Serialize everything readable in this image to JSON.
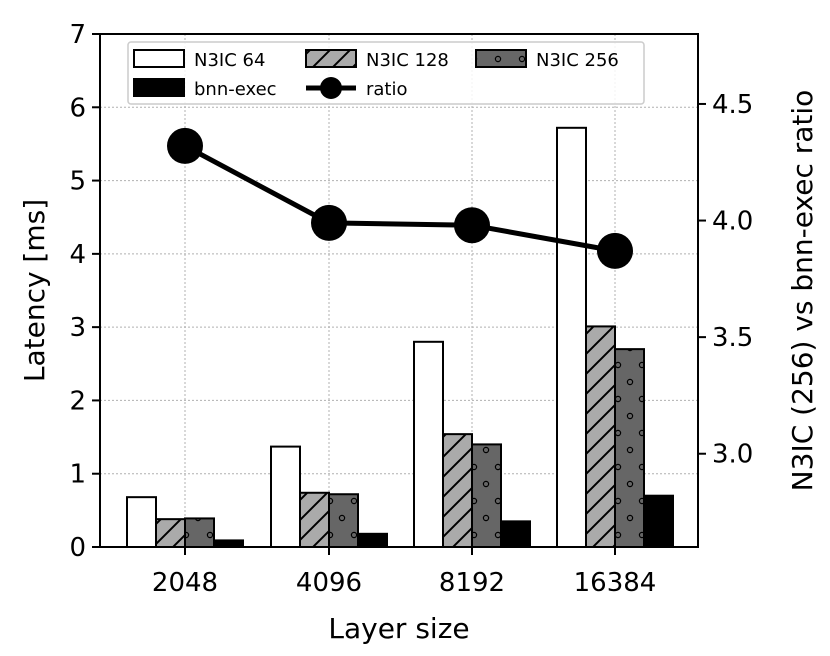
{
  "chart_data": {
    "type": "bar",
    "xlabel": "Layer size",
    "ylabel": "Latency [ms]",
    "y2label": "N3IC (256) vs bnn-exec ratio",
    "categories": [
      "2048",
      "4096",
      "8192",
      "16384"
    ],
    "ylim": [
      0,
      7
    ],
    "y_ticks": [
      "0",
      "1",
      "2",
      "3",
      "4",
      "5",
      "6",
      "7"
    ],
    "y2lim": [
      2.6,
      4.8
    ],
    "y2_ticks": [
      "3.0",
      "3.5",
      "4.0",
      "4.5"
    ],
    "grid": true,
    "legend_position": "top",
    "series": [
      {
        "name": "N3IC 64",
        "values": [
          0.68,
          1.37,
          2.8,
          5.72
        ],
        "fill": "#ffffff",
        "pattern": "none"
      },
      {
        "name": "N3IC 128",
        "values": [
          0.38,
          0.74,
          1.54,
          3.01
        ],
        "fill": "#aaaaaa",
        "pattern": "diagonal"
      },
      {
        "name": "N3IC 256",
        "values": [
          0.39,
          0.72,
          1.4,
          2.7
        ],
        "fill": "#666666",
        "pattern": "dots"
      },
      {
        "name": "bnn-exec",
        "values": [
          0.09,
          0.18,
          0.35,
          0.7
        ],
        "fill": "#000000",
        "pattern": "none"
      }
    ],
    "line_series": {
      "name": "ratio",
      "axis": "right",
      "values": [
        4.32,
        3.99,
        3.98,
        3.87
      ],
      "color": "#000000"
    }
  }
}
